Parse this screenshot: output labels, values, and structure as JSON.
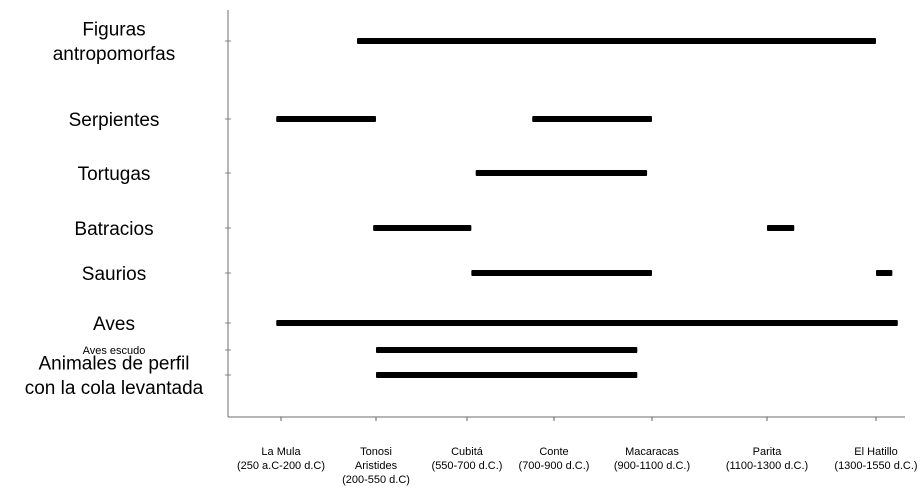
{
  "chart_data": {
    "type": "timeline",
    "categories": [
      {
        "label": "La Mula",
        "period": "(250 a.C-200 d.C)",
        "period2": ""
      },
      {
        "label": "Tonosi",
        "period": "Aristides",
        "period2": "(200-550 d.C)"
      },
      {
        "label": "Cubitá",
        "period": "(550-700 d.C.)",
        "period2": ""
      },
      {
        "label": "Conte",
        "period": "(700-900 d.C.)",
        "period2": ""
      },
      {
        "label": "Macaracas",
        "period": "(900-1100 d.C.)",
        "period2": ""
      },
      {
        "label": "Parita",
        "period": "(1100-1300 d.C.)",
        "period2": ""
      },
      {
        "label": "El Hatillo",
        "period": "(1300-1550 d.C.)",
        "period2": ""
      }
    ],
    "series": [
      {
        "name": "Figuras antropomorfas",
        "lines": [
          "Figuras",
          "antropomorfas"
        ],
        "segments": [
          [
            0.8,
            6.0
          ]
        ]
      },
      {
        "name": "Serpientes",
        "lines": [
          "Serpientes"
        ],
        "segments": [
          [
            -0.05,
            1.0
          ],
          [
            2.75,
            4.0
          ]
        ]
      },
      {
        "name": "Tortugas",
        "lines": [
          "Tortugas"
        ],
        "segments": [
          [
            2.1,
            3.95
          ]
        ]
      },
      {
        "name": "Batracios",
        "lines": [
          "Batracios"
        ],
        "segments": [
          [
            0.97,
            2.05
          ],
          [
            5.0,
            5.25
          ]
        ]
      },
      {
        "name": "Saurios",
        "lines": [
          "Saurios"
        ],
        "segments": [
          [
            2.05,
            4.0
          ],
          [
            6.0,
            6.15
          ]
        ]
      },
      {
        "name": "Aves",
        "lines": [
          "Aves"
        ],
        "segments": [
          [
            -0.05,
            6.2
          ]
        ]
      },
      {
        "name": "Aves escudo",
        "lines": [
          "Aves escudo"
        ],
        "segments": [
          [
            1.0,
            3.85
          ]
        ]
      },
      {
        "name": "Animales de perfil con la cola levantada",
        "lines": [
          "Animales de perfil",
          "con la cola levantada"
        ],
        "segments": [
          [
            1.0,
            3.85
          ]
        ]
      }
    ],
    "xlabel": "",
    "ylabel": "",
    "title": ""
  }
}
